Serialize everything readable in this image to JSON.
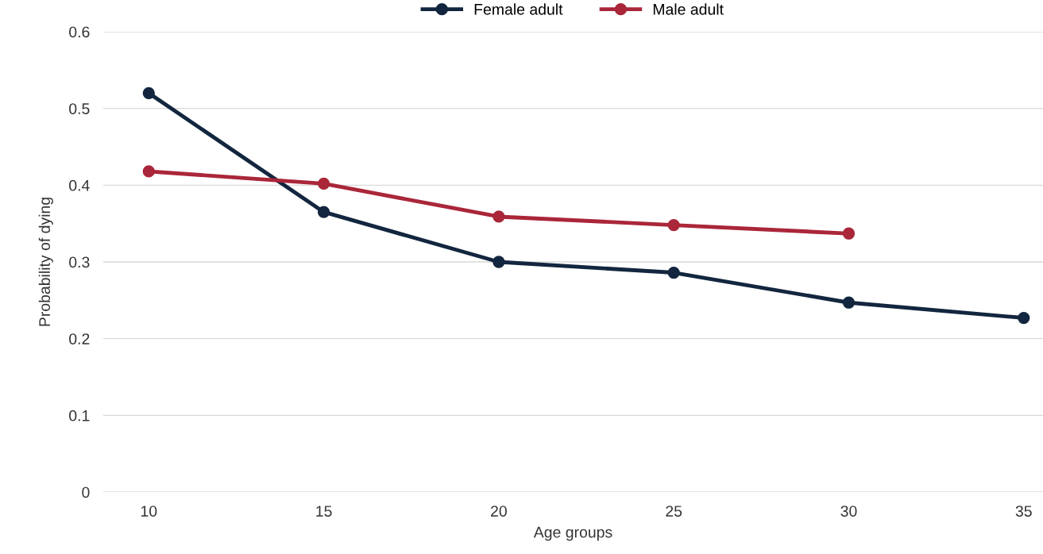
{
  "chart_data": {
    "type": "line",
    "xlabel": "Age groups",
    "ylabel": "Probability of dying",
    "categories": [
      "10",
      "15",
      "20",
      "25",
      "30",
      "35"
    ],
    "series": [
      {
        "name": "Female adult",
        "color": "#13263f",
        "values": [
          0.52,
          0.365,
          0.3,
          0.286,
          0.247,
          0.227
        ]
      },
      {
        "name": "Male adult",
        "color": "#aa2639",
        "values": [
          0.418,
          0.402,
          0.359,
          0.348,
          0.337,
          null
        ]
      }
    ],
    "ylim": [
      0,
      0.6
    ],
    "yticks": [
      0,
      0.1,
      0.2,
      0.3,
      0.4,
      0.5,
      0.6
    ],
    "grid": "y",
    "legend": "top",
    "marker": "circle",
    "line_style": "solid"
  }
}
